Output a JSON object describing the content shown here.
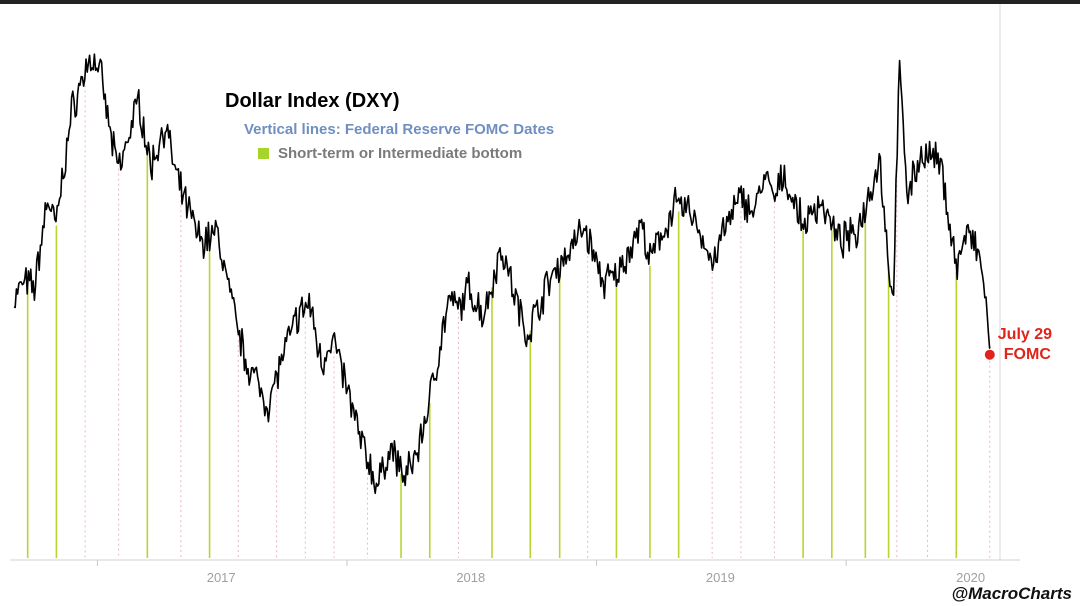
{
  "chart_data": {
    "type": "line",
    "title": "Dollar Index (DXY)",
    "subtitle": "Vertical lines: Federal Reserve FOMC Dates",
    "legend": [
      {
        "label": "Short-term or Intermediate bottom",
        "color": "#a6d42a"
      }
    ],
    "x_ticks": [
      "2017",
      "2018",
      "2019",
      "2020"
    ],
    "ylim": [
      88,
      104
    ],
    "xlim": [
      "2016-09-01",
      "2020-08-10"
    ],
    "grid": false,
    "series": [
      {
        "color": "#000000",
        "points": [
          [
            "2016-09-01",
            95.0
          ],
          [
            "2016-09-15",
            95.6
          ],
          [
            "2016-10-01",
            95.4
          ],
          [
            "2016-10-20",
            98.5
          ],
          [
            "2016-11-01",
            97.5
          ],
          [
            "2016-11-25",
            101.5
          ],
          [
            "2016-12-20",
            103.2
          ],
          [
            "2017-01-03",
            103.0
          ],
          [
            "2017-01-25",
            100.0
          ],
          [
            "2017-02-03",
            99.5
          ],
          [
            "2017-02-20",
            101.0
          ],
          [
            "2017-03-03",
            101.8
          ],
          [
            "2017-03-20",
            99.5
          ],
          [
            "2017-04-10",
            101.0
          ],
          [
            "2017-04-28",
            99.0
          ],
          [
            "2017-05-15",
            98.0
          ],
          [
            "2017-06-01",
            97.0
          ],
          [
            "2017-06-25",
            97.3
          ],
          [
            "2017-07-20",
            94.5
          ],
          [
            "2017-08-05",
            93.0
          ],
          [
            "2017-09-08",
            91.4
          ],
          [
            "2017-09-25",
            92.8
          ],
          [
            "2017-10-20",
            94.4
          ],
          [
            "2017-11-07",
            94.9
          ],
          [
            "2017-11-25",
            92.8
          ],
          [
            "2017-12-10",
            93.8
          ],
          [
            "2017-12-29",
            92.2
          ],
          [
            "2018-01-20",
            90.3
          ],
          [
            "2018-02-15",
            88.6
          ],
          [
            "2018-03-05",
            90.0
          ],
          [
            "2018-03-27",
            88.9
          ],
          [
            "2018-04-15",
            89.9
          ],
          [
            "2018-05-01",
            91.5
          ],
          [
            "2018-05-29",
            94.9
          ],
          [
            "2018-06-15",
            94.7
          ],
          [
            "2018-06-27",
            95.4
          ],
          [
            "2018-07-20",
            94.5
          ],
          [
            "2018-08-15",
            96.8
          ],
          [
            "2018-09-05",
            95.0
          ],
          [
            "2018-09-21",
            93.8
          ],
          [
            "2018-10-15",
            95.2
          ],
          [
            "2018-11-01",
            96.0
          ],
          [
            "2018-11-20",
            96.6
          ],
          [
            "2018-12-14",
            97.5
          ],
          [
            "2019-01-10",
            95.6
          ],
          [
            "2019-01-31",
            95.8
          ],
          [
            "2019-03-07",
            97.6
          ],
          [
            "2019-03-20",
            96.3
          ],
          [
            "2019-04-25",
            98.2
          ],
          [
            "2019-05-20",
            98.0
          ],
          [
            "2019-06-20",
            96.2
          ],
          [
            "2019-07-05",
            97.3
          ],
          [
            "2019-07-31",
            98.5
          ],
          [
            "2019-08-20",
            98.0
          ],
          [
            "2019-09-03",
            99.2
          ],
          [
            "2019-09-20",
            98.4
          ],
          [
            "2019-10-01",
            99.3
          ],
          [
            "2019-10-30",
            97.5
          ],
          [
            "2019-11-25",
            98.4
          ],
          [
            "2019-12-20",
            97.0
          ],
          [
            "2020-01-15",
            97.2
          ],
          [
            "2020-02-19",
            99.8
          ],
          [
            "2020-03-09",
            94.7
          ],
          [
            "2020-03-19",
            102.8
          ],
          [
            "2020-03-31",
            98.6
          ],
          [
            "2020-04-20",
            100.0
          ],
          [
            "2020-05-10",
            99.8
          ],
          [
            "2020-05-20",
            99.4
          ],
          [
            "2020-06-10",
            96.1
          ],
          [
            "2020-06-25",
            97.3
          ],
          [
            "2020-07-10",
            96.7
          ],
          [
            "2020-07-20",
            95.7
          ],
          [
            "2020-07-29",
            93.4
          ]
        ]
      }
    ],
    "fomc_dates": [
      {
        "date": "2016-09-21",
        "bottom": true
      },
      {
        "date": "2016-11-02",
        "bottom": true
      },
      {
        "date": "2016-12-14",
        "bottom": false
      },
      {
        "date": "2017-02-01",
        "bottom": false
      },
      {
        "date": "2017-03-15",
        "bottom": true
      },
      {
        "date": "2017-05-03",
        "bottom": false
      },
      {
        "date": "2017-06-14",
        "bottom": true
      },
      {
        "date": "2017-07-26",
        "bottom": false
      },
      {
        "date": "2017-09-20",
        "bottom": false
      },
      {
        "date": "2017-11-01",
        "bottom": false
      },
      {
        "date": "2017-12-13",
        "bottom": false
      },
      {
        "date": "2018-01-31",
        "bottom": false
      },
      {
        "date": "2018-03-21",
        "bottom": true
      },
      {
        "date": "2018-05-02",
        "bottom": true
      },
      {
        "date": "2018-06-13",
        "bottom": false
      },
      {
        "date": "2018-08-01",
        "bottom": true
      },
      {
        "date": "2018-09-26",
        "bottom": true
      },
      {
        "date": "2018-11-08",
        "bottom": true
      },
      {
        "date": "2018-12-19",
        "bottom": false
      },
      {
        "date": "2019-01-30",
        "bottom": true
      },
      {
        "date": "2019-03-20",
        "bottom": true
      },
      {
        "date": "2019-05-01",
        "bottom": true
      },
      {
        "date": "2019-06-19",
        "bottom": false
      },
      {
        "date": "2019-07-31",
        "bottom": false
      },
      {
        "date": "2019-09-18",
        "bottom": false
      },
      {
        "date": "2019-10-30",
        "bottom": true
      },
      {
        "date": "2019-12-11",
        "bottom": true
      },
      {
        "date": "2020-01-29",
        "bottom": true
      },
      {
        "date": "2020-03-03",
        "bottom": true
      },
      {
        "date": "2020-03-15",
        "bottom": false
      },
      {
        "date": "2020-04-29",
        "bottom": false
      },
      {
        "date": "2020-06-10",
        "bottom": true
      },
      {
        "date": "2020-07-29",
        "bottom": false
      }
    ],
    "annotation": {
      "line1": "July 29",
      "line2": "FOMC",
      "date": "2020-07-29",
      "value": 93.4,
      "color": "#e0241b"
    }
  },
  "watermark": "@MacroCharts"
}
